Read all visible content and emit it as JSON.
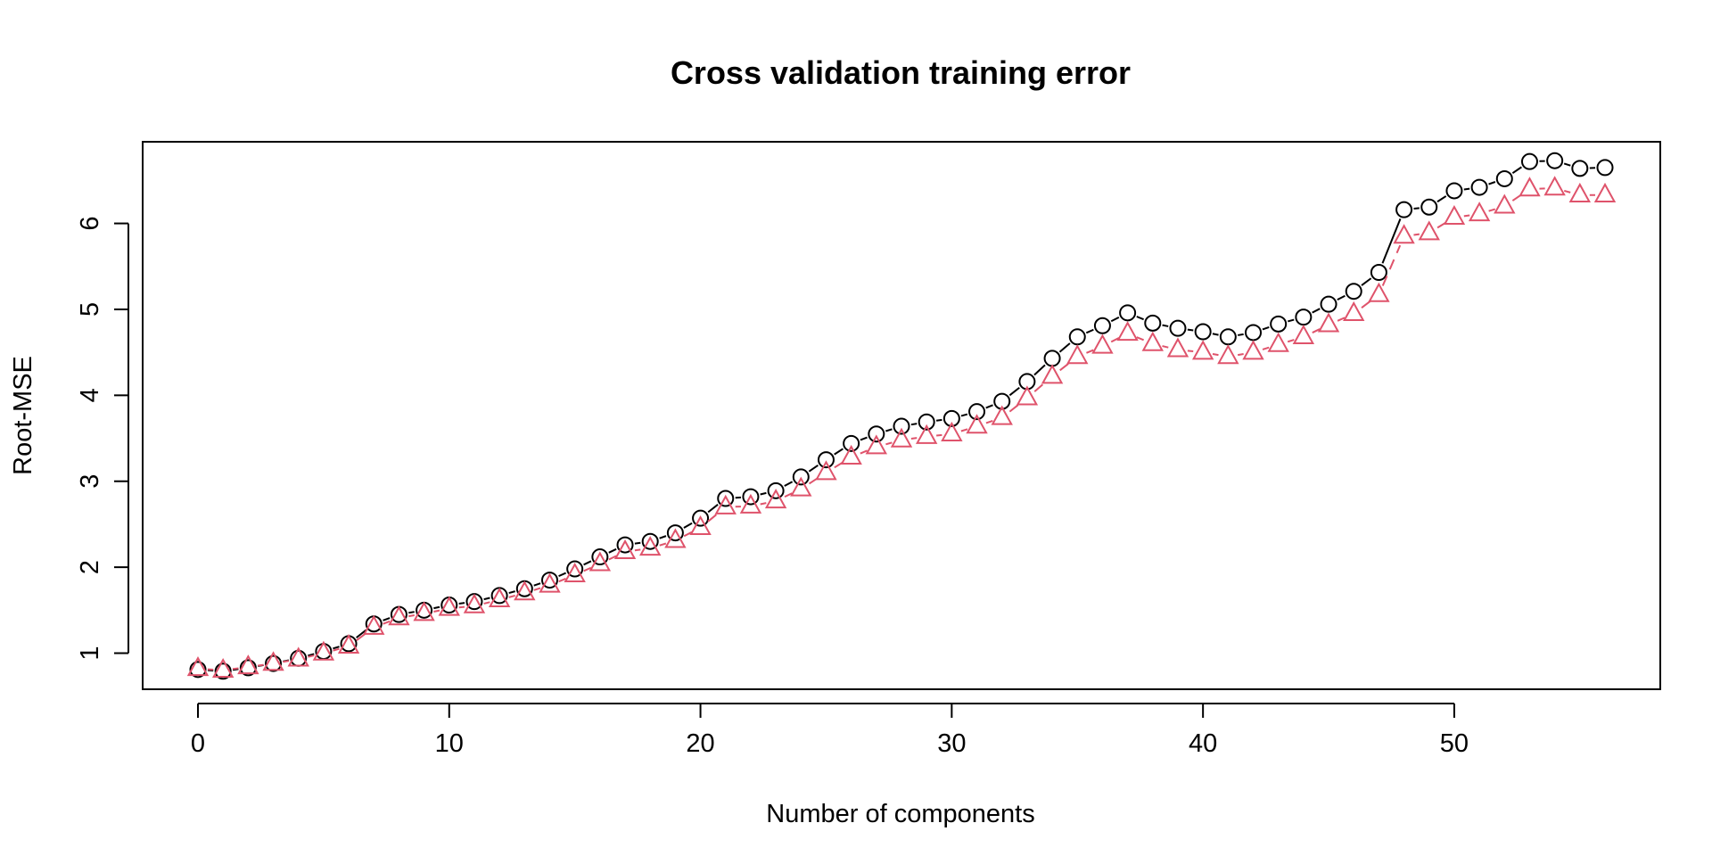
{
  "chart_data": {
    "type": "line",
    "title": "Cross validation training error",
    "xlabel": "Number of components",
    "ylabel": "Root-MSE",
    "xlim": [
      -2.2,
      58.2
    ],
    "ylim": [
      0.58,
      6.95
    ],
    "x_ticks": [
      0,
      10,
      20,
      30,
      40,
      50
    ],
    "y_ticks": [
      1,
      2,
      3,
      4,
      5,
      6
    ],
    "grid": false,
    "legend": "none",
    "x": [
      0,
      1,
      2,
      3,
      4,
      5,
      6,
      7,
      8,
      9,
      10,
      11,
      12,
      13,
      14,
      15,
      16,
      17,
      18,
      19,
      20,
      21,
      22,
      23,
      24,
      25,
      26,
      27,
      28,
      29,
      30,
      31,
      32,
      33,
      34,
      35,
      36,
      37,
      38,
      39,
      40,
      41,
      42,
      43,
      44,
      45,
      46,
      47,
      48,
      49,
      50,
      51,
      52,
      53,
      54,
      55,
      56
    ],
    "series": [
      {
        "marker": "circle",
        "line_style": "solid",
        "color": "#000000",
        "values": [
          0.81,
          0.79,
          0.83,
          0.88,
          0.94,
          1.02,
          1.11,
          1.34,
          1.45,
          1.5,
          1.56,
          1.6,
          1.67,
          1.75,
          1.85,
          1.98,
          2.12,
          2.26,
          2.3,
          2.4,
          2.57,
          2.8,
          2.82,
          2.89,
          3.05,
          3.25,
          3.44,
          3.55,
          3.64,
          3.69,
          3.73,
          3.81,
          3.93,
          4.16,
          4.43,
          4.68,
          4.81,
          4.96,
          4.84,
          4.78,
          4.74,
          4.68,
          4.73,
          4.83,
          4.91,
          5.06,
          5.21,
          5.43,
          6.16,
          6.19,
          6.38,
          6.42,
          6.52,
          6.72,
          6.73,
          6.64,
          6.65
        ]
      },
      {
        "marker": "triangle",
        "line_style": "dashed",
        "color": "#DF536B",
        "values": [
          0.82,
          0.8,
          0.84,
          0.88,
          0.93,
          1.0,
          1.08,
          1.3,
          1.41,
          1.46,
          1.52,
          1.55,
          1.62,
          1.7,
          1.79,
          1.91,
          2.04,
          2.18,
          2.22,
          2.31,
          2.46,
          2.7,
          2.71,
          2.77,
          2.91,
          3.1,
          3.28,
          3.4,
          3.48,
          3.52,
          3.55,
          3.64,
          3.74,
          3.97,
          4.22,
          4.45,
          4.57,
          4.72,
          4.6,
          4.53,
          4.5,
          4.45,
          4.5,
          4.59,
          4.68,
          4.82,
          4.95,
          5.17,
          5.85,
          5.89,
          6.07,
          6.11,
          6.2,
          6.4,
          6.41,
          6.33,
          6.33
        ]
      }
    ]
  }
}
